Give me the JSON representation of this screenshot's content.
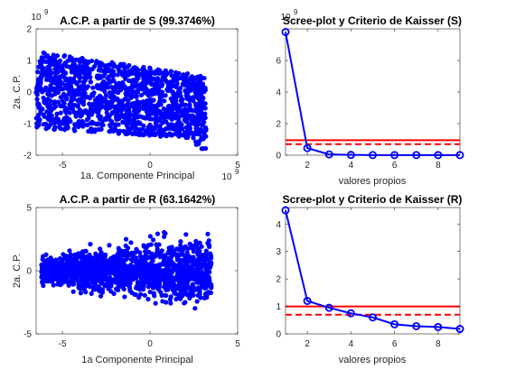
{
  "figure": {
    "background": "#ffffff",
    "axis_color": "#262626",
    "series_color": "#0000ff",
    "criterion_color": "#ff0000"
  },
  "chart_data": [
    {
      "type": "scatter",
      "title": "A.C.P. a partir de S  (99.3746%)",
      "xlabel": "1a. Componente Principal",
      "ylabel": "2a. C.P.",
      "x_exponent": "×10^9",
      "y_exponent": "×10^9",
      "xlim": [
        -6.5,
        5
      ],
      "ylim": [
        -2,
        2
      ],
      "xticks": [
        "-5",
        "0",
        "5"
      ],
      "yticks": [
        "-2",
        "-1",
        "0",
        "1",
        "2"
      ],
      "grid": false,
      "description_points": {
        "x_range": [
          -6.5,
          3.2
        ],
        "cloud": "dense parallelogram: upper edge from (-6.5,1.3) to (3.2,0.5), lower edge from (-6.5,-1.15) to (3.2,-1.5), with a short tail near x≈3 down to y≈-1.8"
      }
    },
    {
      "type": "line",
      "title": "Scree-plot y Criterio de Kaisser (S)",
      "xlabel": "valores propios",
      "ylabel": "",
      "y_exponent": "×10^9",
      "xlim": [
        1,
        9
      ],
      "ylim": [
        0,
        8
      ],
      "xticks": [
        "2",
        "4",
        "6",
        "8"
      ],
      "yticks": [
        "0",
        "2",
        "4",
        "6"
      ],
      "grid": false,
      "x": [
        1,
        2,
        3,
        4,
        5,
        6,
        7,
        8,
        9
      ],
      "series": [
        {
          "values": [
            7.8,
            0.45,
            0.05,
            0.02,
            0.01,
            0.01,
            0.01,
            0.01,
            0.01
          ]
        }
      ],
      "criterion_solid": 0.95,
      "criterion_dashed": 0.7
    },
    {
      "type": "scatter",
      "title": "A.C.P. a partir de R  (63.1642%)",
      "xlabel": "1a  Componente Principal",
      "ylabel": "2a. C.P.",
      "xlim": [
        -6.5,
        5
      ],
      "ylim": [
        -5,
        5
      ],
      "xticks": [
        "-5",
        "0",
        "5"
      ],
      "yticks": [
        "-5",
        "0",
        "5"
      ],
      "grid": false,
      "description_points": {
        "x_range": [
          -6.2,
          3.5
        ],
        "cloud": "dense cloud centered near y=0, widening to the right (about ±1.5 at x=-6, ±3.5 at x=3)"
      }
    },
    {
      "type": "line",
      "title": "Scree-plot y Criterio de Kaisser (R)",
      "xlabel": "valores propios",
      "ylabel": "",
      "xlim": [
        1,
        9
      ],
      "ylim": [
        0,
        4.6
      ],
      "xticks": [
        "2",
        "4",
        "6",
        "8"
      ],
      "yticks": [
        "0",
        "1",
        "2",
        "3",
        "4"
      ],
      "grid": false,
      "x": [
        1,
        2,
        3,
        4,
        5,
        6,
        7,
        8,
        9
      ],
      "series": [
        {
          "values": [
            4.5,
            1.2,
            0.95,
            0.75,
            0.6,
            0.35,
            0.28,
            0.25,
            0.18
          ]
        }
      ],
      "criterion_solid": 1.0,
      "criterion_dashed": 0.7
    }
  ]
}
